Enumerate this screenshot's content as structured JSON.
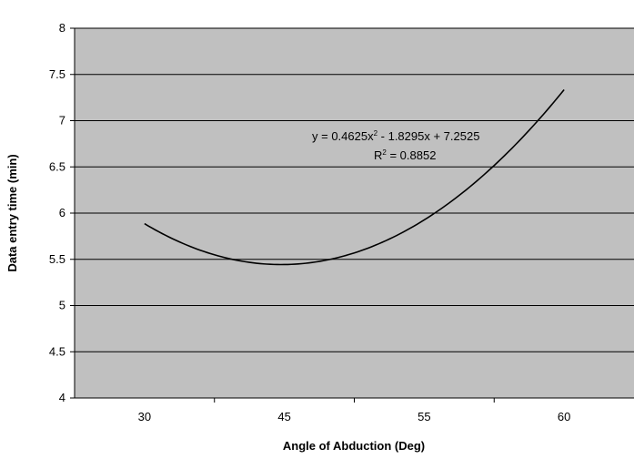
{
  "chart_data": {
    "type": "line",
    "xlabel": "Angle of Abduction (Deg)",
    "ylabel": "Data entry time (min)",
    "categories": [
      "30",
      "45",
      "55",
      "60"
    ],
    "ylim": [
      4,
      8
    ],
    "yticks": [
      "4",
      "4.5",
      "5",
      "5.5",
      "6",
      "6.5",
      "7",
      "7.5",
      "8"
    ],
    "grid": true,
    "legend": "none",
    "trendline": {
      "type": "polynomial",
      "order": 2,
      "coefficients": [
        0.4625,
        -1.8295,
        7.2525
      ],
      "equation_prefix": "y = 0.4625x",
      "equation_exp": "2",
      "equation_suffix": " - 1.8295x + 7.2525",
      "r2_prefix": "R",
      "r2_exp": "2",
      "r2_suffix": " = 0.8852",
      "x_from": 1,
      "x_to": 4
    },
    "colors": {
      "plot_background": "#c0c0c0",
      "gridline": "#000000",
      "curve": "#000000"
    }
  }
}
